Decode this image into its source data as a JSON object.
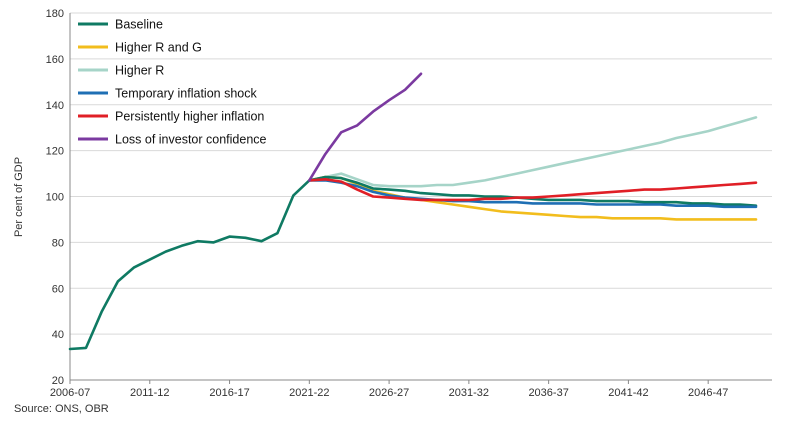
{
  "chart_data": {
    "type": "line",
    "xlabel": "",
    "ylabel": "Per cent of GDP",
    "ylim": [
      20,
      180
    ],
    "yticks": [
      20,
      40,
      60,
      80,
      100,
      120,
      140,
      160,
      180
    ],
    "x_tick_labels": [
      "2006-07",
      "2011-12",
      "2016-17",
      "2021-22",
      "2026-27",
      "2031-32",
      "2036-37",
      "2041-42",
      "2046-47"
    ],
    "x_tick_years": [
      2006,
      2011,
      2016,
      2021,
      2026,
      2031,
      2036,
      2041,
      2046
    ],
    "xlim": [
      2006,
      2050
    ],
    "grid": "horizontal",
    "legend_position": "top-left",
    "series": [
      {
        "name": "Baseline",
        "color": "#0f7a63",
        "x": [
          2006,
          2007,
          2008,
          2009,
          2010,
          2011,
          2012,
          2013,
          2014,
          2015,
          2016,
          2017,
          2018,
          2019,
          2020,
          2021,
          2022,
          2023,
          2024,
          2025,
          2026,
          2027,
          2028,
          2029,
          2030,
          2031,
          2032,
          2033,
          2034,
          2035,
          2036,
          2037,
          2038,
          2039,
          2040,
          2041,
          2042,
          2043,
          2044,
          2045,
          2046,
          2047,
          2048,
          2049
        ],
        "values": [
          33.5,
          34,
          50,
          63,
          69,
          72.5,
          76,
          78.5,
          80.5,
          80,
          82.5,
          82,
          80.5,
          84,
          100.5,
          107,
          108.5,
          108,
          106,
          103.5,
          103,
          102.5,
          101.5,
          101,
          100.5,
          100.5,
          100,
          100,
          99.5,
          99,
          98.5,
          98.5,
          98.5,
          98,
          98,
          98,
          97.5,
          97.5,
          97.5,
          97,
          97,
          96.5,
          96.5,
          96
        ]
      },
      {
        "name": "Higher R and G",
        "color": "#f2bd1d",
        "x": [
          2021,
          2022,
          2023,
          2024,
          2025,
          2026,
          2027,
          2028,
          2029,
          2030,
          2031,
          2032,
          2033,
          2034,
          2035,
          2036,
          2037,
          2038,
          2039,
          2040,
          2041,
          2042,
          2043,
          2044,
          2045,
          2046,
          2047,
          2048,
          2049
        ],
        "values": [
          107,
          108.5,
          108,
          105.5,
          102.5,
          101,
          99.5,
          98.5,
          97.5,
          96.5,
          95.5,
          94.5,
          93.5,
          93,
          92.5,
          92,
          91.5,
          91,
          91,
          90.5,
          90.5,
          90.5,
          90.5,
          90,
          90,
          90,
          90,
          90,
          90
        ]
      },
      {
        "name": "Higher R",
        "color": "#a6d4c8",
        "x": [
          2021,
          2022,
          2023,
          2024,
          2025,
          2026,
          2027,
          2028,
          2029,
          2030,
          2031,
          2032,
          2033,
          2034,
          2035,
          2036,
          2037,
          2038,
          2039,
          2040,
          2041,
          2042,
          2043,
          2044,
          2045,
          2046,
          2047,
          2048,
          2049
        ],
        "values": [
          107,
          108.5,
          110,
          107.5,
          105,
          104.5,
          104.5,
          104.5,
          105,
          105,
          106,
          107,
          108.5,
          110,
          111.5,
          113,
          114.5,
          116,
          117.5,
          119,
          120.5,
          122,
          123.5,
          125.5,
          127,
          128.5,
          130.5,
          132.5,
          134.5
        ]
      },
      {
        "name": "Temporary inflation shock",
        "color": "#1f6fb4",
        "x": [
          2021,
          2022,
          2023,
          2024,
          2025,
          2026,
          2027,
          2028,
          2029,
          2030,
          2031,
          2032,
          2033,
          2034,
          2035,
          2036,
          2037,
          2038,
          2039,
          2040,
          2041,
          2042,
          2043,
          2044,
          2045,
          2046,
          2047,
          2048,
          2049
        ],
        "values": [
          107,
          107,
          106,
          104.5,
          102,
          100.5,
          99.5,
          99,
          98.5,
          98,
          98,
          97.5,
          97.5,
          97.5,
          97,
          97,
          97,
          97,
          96.5,
          96.5,
          96.5,
          96.5,
          96.5,
          96,
          96,
          96,
          95.5,
          95.5,
          95.5
        ]
      },
      {
        "name": "Persistently higher inflation",
        "color": "#e01f26",
        "x": [
          2021,
          2022,
          2023,
          2024,
          2025,
          2026,
          2027,
          2028,
          2029,
          2030,
          2031,
          2032,
          2033,
          2034,
          2035,
          2036,
          2037,
          2038,
          2039,
          2040,
          2041,
          2042,
          2043,
          2044,
          2045,
          2046,
          2047,
          2048,
          2049
        ],
        "values": [
          107,
          107.5,
          106.5,
          103,
          100,
          99.5,
          99,
          98.5,
          98.5,
          98.5,
          98.5,
          99,
          99,
          99.5,
          99.5,
          100,
          100.5,
          101,
          101.5,
          102,
          102.5,
          103,
          103,
          103.5,
          104,
          104.5,
          105,
          105.5,
          106
        ]
      },
      {
        "name": "Loss of investor confidence",
        "color": "#7b3aa0",
        "x": [
          2021,
          2022,
          2023,
          2024,
          2025,
          2026,
          2027,
          2028
        ],
        "values": [
          107,
          118.5,
          128,
          131,
          137,
          142,
          146.5,
          153.5
        ]
      }
    ],
    "annotations": [
      "Source: ONS, OBR"
    ]
  }
}
